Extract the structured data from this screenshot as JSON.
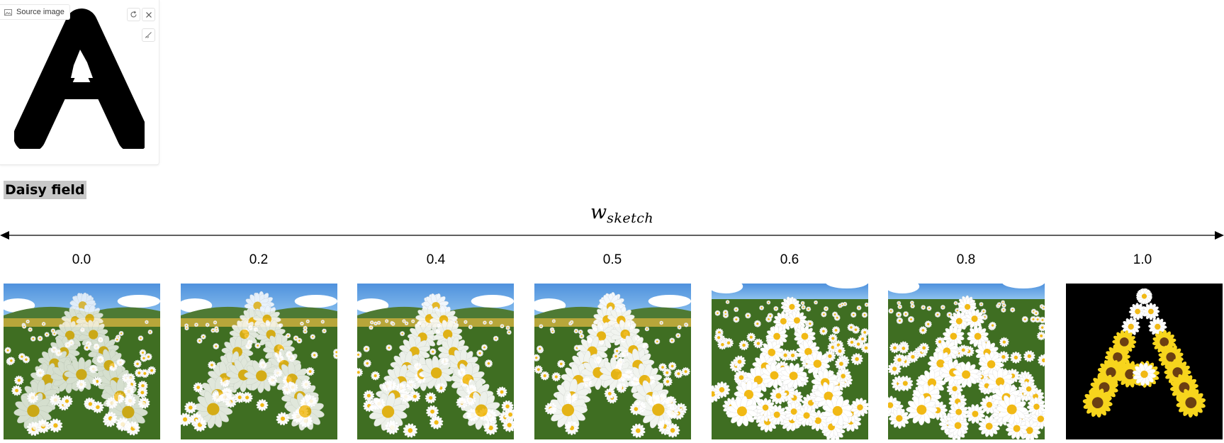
{
  "source_panel": {
    "label": "Source image",
    "icons": [
      "image-icon",
      "refresh-icon",
      "close-icon",
      "brush-icon"
    ]
  },
  "prompt": "Daisy field",
  "axis": {
    "label_main": "w",
    "label_sub": "sketch"
  },
  "columns": [
    {
      "label": "0.0",
      "style": "photo",
      "sketch_weight": 0.0
    },
    {
      "label": "0.2",
      "style": "photo",
      "sketch_weight": 0.2
    },
    {
      "label": "0.4",
      "style": "photo",
      "sketch_weight": 0.4
    },
    {
      "label": "0.5",
      "style": "photo",
      "sketch_weight": 0.5
    },
    {
      "label": "0.6",
      "style": "field",
      "sketch_weight": 0.6
    },
    {
      "label": "0.8",
      "style": "field",
      "sketch_weight": 0.8
    },
    {
      "label": "1.0",
      "style": "black",
      "sketch_weight": 1.0
    }
  ],
  "colors": {
    "sky": "#8fc3ef",
    "hills": "#4e7a34",
    "grass": "#3f6e22",
    "petal": "#ffffff",
    "center": "#f1b915",
    "sunflower": "#f7d51d",
    "background_black": "#000000",
    "prompt_highlight": "#c8c8c8"
  }
}
